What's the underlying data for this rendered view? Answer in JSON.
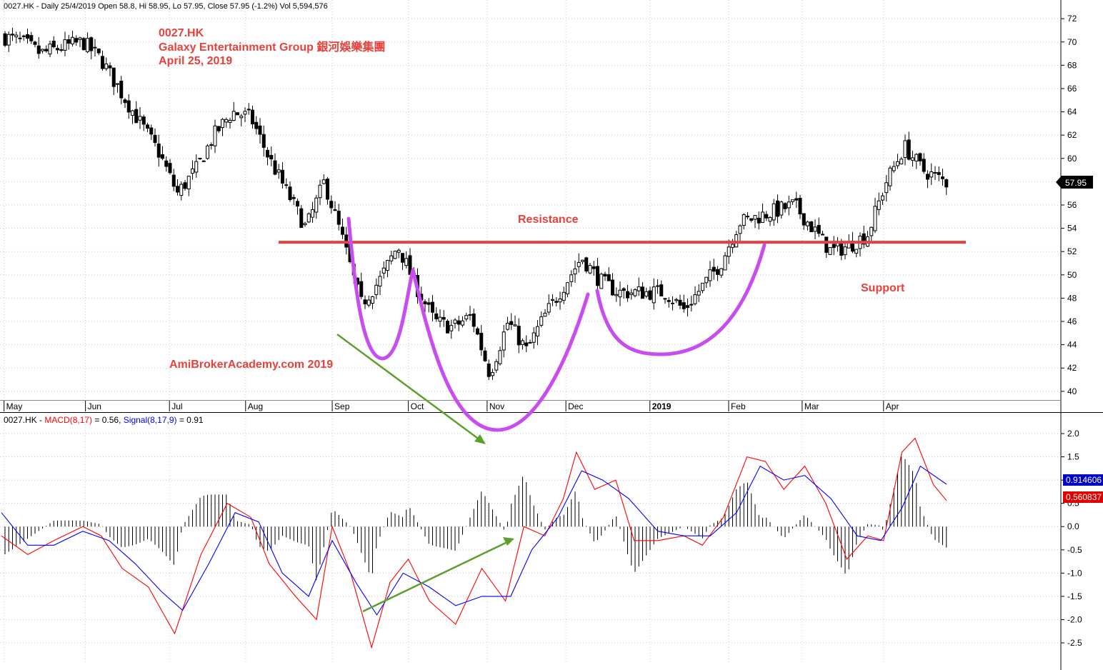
{
  "price_panel": {
    "header": "0027.HK - Daily 25/4/2019 Open 58.8, Hi 58.95, Lo 57.95, Close 57.95 (-1.2%) Vol 5,594,576",
    "title_lines": [
      "0027.HK",
      "Galaxy Entertainment Group 銀河娛樂集團",
      "April 25, 2019"
    ],
    "watermark": "AmiBrokerAcademy.com  2019",
    "resistance_label": "Resistance",
    "support_label": "Support",
    "last_price_label": "57.95"
  },
  "macd_panel": {
    "symbol": "0027.HK -",
    "macd_label": "MACD(8,17)",
    "macd_value": "= 0.56,",
    "signal_label": "Signal(8,17,9)",
    "signal_value": "= 0.91",
    "macd_readout": "0.560837",
    "signal_readout": "0.914606"
  },
  "colors": {
    "annotation": "#e8413b",
    "pattern": "#c84cf0",
    "divergence_arrow": "#5aa02c",
    "macd_line": "#ff0000",
    "signal_line": "#0000ff",
    "candle": "#000000"
  },
  "chart_data": [
    {
      "type": "candlestick",
      "title": "0027.HK",
      "x_labels": [
        "May",
        "Jun",
        "Jul",
        "Aug",
        "Sep",
        "Oct",
        "Nov",
        "Dec",
        "2019",
        "Feb",
        "Mar",
        "Apr"
      ],
      "y_ticks": [
        40,
        42,
        44,
        46,
        48,
        50,
        52,
        54,
        56,
        58,
        60,
        62,
        64,
        66,
        68,
        70,
        72
      ],
      "ylim": [
        39.5,
        72.5
      ],
      "resistance_level": 52.8,
      "last_close": 57.95,
      "close_path": [
        {
          "date": "2018-04-30",
          "close": 70.5
        },
        {
          "date": "2018-05-08",
          "close": 70.0
        },
        {
          "date": "2018-05-15",
          "close": 69.0
        },
        {
          "date": "2018-05-22",
          "close": 69.5
        },
        {
          "date": "2018-05-31",
          "close": 70.0
        },
        {
          "date": "2018-06-07",
          "close": 68.5
        },
        {
          "date": "2018-06-15",
          "close": 65.5
        },
        {
          "date": "2018-06-22",
          "close": 63.0
        },
        {
          "date": "2018-06-29",
          "close": 60.5
        },
        {
          "date": "2018-07-06",
          "close": 57.0
        },
        {
          "date": "2018-07-13",
          "close": 59.0
        },
        {
          "date": "2018-07-20",
          "close": 62.0
        },
        {
          "date": "2018-07-27",
          "close": 64.0
        },
        {
          "date": "2018-08-03",
          "close": 63.5
        },
        {
          "date": "2018-08-10",
          "close": 60.0
        },
        {
          "date": "2018-08-17",
          "close": 57.0
        },
        {
          "date": "2018-08-24",
          "close": 54.0
        },
        {
          "date": "2018-08-31",
          "close": 58.0
        },
        {
          "date": "2018-09-07",
          "close": 53.0
        },
        {
          "date": "2018-09-14",
          "close": 47.5
        },
        {
          "date": "2018-09-21",
          "close": 49.5
        },
        {
          "date": "2018-09-28",
          "close": 52.5
        },
        {
          "date": "2018-10-05",
          "close": 49.0
        },
        {
          "date": "2018-10-12",
          "close": 46.0
        },
        {
          "date": "2018-10-19",
          "close": 45.5
        },
        {
          "date": "2018-10-26",
          "close": 46.5
        },
        {
          "date": "2018-11-02",
          "close": 41.5
        },
        {
          "date": "2018-11-09",
          "close": 46.0
        },
        {
          "date": "2018-11-16",
          "close": 43.5
        },
        {
          "date": "2018-11-23",
          "close": 46.5
        },
        {
          "date": "2018-11-30",
          "close": 49.0
        },
        {
          "date": "2018-12-07",
          "close": 51.5
        },
        {
          "date": "2018-12-14",
          "close": 49.5
        },
        {
          "date": "2018-12-21",
          "close": 48.5
        },
        {
          "date": "2018-12-31",
          "close": 48.5
        },
        {
          "date": "2019-01-08",
          "close": 48.5
        },
        {
          "date": "2019-01-15",
          "close": 47.0
        },
        {
          "date": "2019-01-22",
          "close": 49.0
        },
        {
          "date": "2019-01-29",
          "close": 51.0
        },
        {
          "date": "2019-02-05",
          "close": 54.5
        },
        {
          "date": "2019-02-12",
          "close": 55.0
        },
        {
          "date": "2019-02-19",
          "close": 55.5
        },
        {
          "date": "2019-02-26",
          "close": 56.0
        },
        {
          "date": "2019-03-05",
          "close": 54.0
        },
        {
          "date": "2019-03-12",
          "close": 52.0
        },
        {
          "date": "2019-03-19",
          "close": 52.5
        },
        {
          "date": "2019-03-26",
          "close": 53.5
        },
        {
          "date": "2019-04-02",
          "close": 58.0
        },
        {
          "date": "2019-04-09",
          "close": 61.0
        },
        {
          "date": "2019-04-16",
          "close": 59.0
        },
        {
          "date": "2019-04-25",
          "close": 57.95
        }
      ]
    },
    {
      "type": "line",
      "title": "MACD(8,17)",
      "x_labels": [
        "May",
        "Jun",
        "Jul",
        "Aug",
        "Sep",
        "Oct",
        "Nov",
        "Dec",
        "2019",
        "Feb",
        "Mar",
        "Apr"
      ],
      "y_ticks": [
        -2.5,
        -2.0,
        -1.5,
        -1.0,
        -0.5,
        0.0,
        0.5,
        1.0,
        1.5,
        2.0
      ],
      "ylim": [
        -2.7,
        2.2
      ],
      "series": [
        {
          "name": "MACD(8,17)",
          "color": "#ff0000",
          "points": [
            {
              "date": "2018-04-30",
              "y": -0.2
            },
            {
              "date": "2018-05-10",
              "y": -0.6
            },
            {
              "date": "2018-05-20",
              "y": -0.3
            },
            {
              "date": "2018-05-31",
              "y": 0.0
            },
            {
              "date": "2018-06-07",
              "y": -0.2
            },
            {
              "date": "2018-06-15",
              "y": -0.9
            },
            {
              "date": "2018-06-25",
              "y": -1.3
            },
            {
              "date": "2018-07-05",
              "y": -2.3
            },
            {
              "date": "2018-07-15",
              "y": -0.6
            },
            {
              "date": "2018-07-25",
              "y": 0.5
            },
            {
              "date": "2018-08-03",
              "y": 0.2
            },
            {
              "date": "2018-08-10",
              "y": -0.8
            },
            {
              "date": "2018-08-20",
              "y": -1.5
            },
            {
              "date": "2018-08-28",
              "y": -2.0
            },
            {
              "date": "2018-09-03",
              "y": 0.0
            },
            {
              "date": "2018-09-10",
              "y": -1.0
            },
            {
              "date": "2018-09-18",
              "y": -2.6
            },
            {
              "date": "2018-09-25",
              "y": -1.2
            },
            {
              "date": "2018-10-02",
              "y": -0.7
            },
            {
              "date": "2018-10-10",
              "y": -1.6
            },
            {
              "date": "2018-10-20",
              "y": -2.1
            },
            {
              "date": "2018-10-30",
              "y": -0.9
            },
            {
              "date": "2018-11-08",
              "y": -1.6
            },
            {
              "date": "2018-11-15",
              "y": 0.0
            },
            {
              "date": "2018-11-23",
              "y": -0.2
            },
            {
              "date": "2018-11-30",
              "y": 0.6
            },
            {
              "date": "2018-12-05",
              "y": 1.6
            },
            {
              "date": "2018-12-12",
              "y": 0.8
            },
            {
              "date": "2018-12-20",
              "y": 1.0
            },
            {
              "date": "2018-12-27",
              "y": -0.3
            },
            {
              "date": "2019-01-05",
              "y": -0.3
            },
            {
              "date": "2019-01-15",
              "y": -0.2
            },
            {
              "date": "2019-01-22",
              "y": -0.4
            },
            {
              "date": "2019-01-30",
              "y": 0.2
            },
            {
              "date": "2019-02-08",
              "y": 1.5
            },
            {
              "date": "2019-02-15",
              "y": 1.4
            },
            {
              "date": "2019-02-22",
              "y": 0.8
            },
            {
              "date": "2019-03-02",
              "y": 1.3
            },
            {
              "date": "2019-03-10",
              "y": 0.5
            },
            {
              "date": "2019-03-18",
              "y": -0.7
            },
            {
              "date": "2019-03-26",
              "y": -0.2
            },
            {
              "date": "2019-04-01",
              "y": -0.3
            },
            {
              "date": "2019-04-08",
              "y": 1.6
            },
            {
              "date": "2019-04-13",
              "y": 1.9
            },
            {
              "date": "2019-04-20",
              "y": 0.9
            },
            {
              "date": "2019-04-25",
              "y": 0.56
            }
          ]
        },
        {
          "name": "Signal(8,17,9)",
          "color": "#0000ff",
          "points": [
            {
              "date": "2018-04-30",
              "y": 0.3
            },
            {
              "date": "2018-05-10",
              "y": -0.4
            },
            {
              "date": "2018-05-20",
              "y": -0.4
            },
            {
              "date": "2018-05-31",
              "y": -0.1
            },
            {
              "date": "2018-06-10",
              "y": -0.3
            },
            {
              "date": "2018-06-20",
              "y": -0.8
            },
            {
              "date": "2018-06-30",
              "y": -1.4
            },
            {
              "date": "2018-07-08",
              "y": -1.8
            },
            {
              "date": "2018-07-18",
              "y": -0.8
            },
            {
              "date": "2018-07-28",
              "y": 0.3
            },
            {
              "date": "2018-08-06",
              "y": 0.1
            },
            {
              "date": "2018-08-15",
              "y": -1.0
            },
            {
              "date": "2018-08-25",
              "y": -1.5
            },
            {
              "date": "2018-09-03",
              "y": -0.3
            },
            {
              "date": "2018-09-12",
              "y": -1.2
            },
            {
              "date": "2018-09-20",
              "y": -1.9
            },
            {
              "date": "2018-09-30",
              "y": -1.0
            },
            {
              "date": "2018-10-10",
              "y": -1.3
            },
            {
              "date": "2018-10-20",
              "y": -1.7
            },
            {
              "date": "2018-10-30",
              "y": -1.5
            },
            {
              "date": "2018-11-10",
              "y": -1.5
            },
            {
              "date": "2018-11-18",
              "y": -0.5
            },
            {
              "date": "2018-11-28",
              "y": 0.2
            },
            {
              "date": "2018-12-07",
              "y": 1.2
            },
            {
              "date": "2018-12-15",
              "y": 1.0
            },
            {
              "date": "2018-12-25",
              "y": 0.6
            },
            {
              "date": "2019-01-05",
              "y": -0.1
            },
            {
              "date": "2019-01-15",
              "y": -0.2
            },
            {
              "date": "2019-01-25",
              "y": -0.2
            },
            {
              "date": "2019-02-04",
              "y": 0.3
            },
            {
              "date": "2019-02-13",
              "y": 1.3
            },
            {
              "date": "2019-02-22",
              "y": 1.0
            },
            {
              "date": "2019-03-02",
              "y": 1.1
            },
            {
              "date": "2019-03-12",
              "y": 0.6
            },
            {
              "date": "2019-03-22",
              "y": -0.2
            },
            {
              "date": "2019-03-31",
              "y": -0.3
            },
            {
              "date": "2019-04-08",
              "y": 0.4
            },
            {
              "date": "2019-04-15",
              "y": 1.3
            },
            {
              "date": "2019-04-25",
              "y": 0.91
            }
          ]
        }
      ]
    }
  ]
}
